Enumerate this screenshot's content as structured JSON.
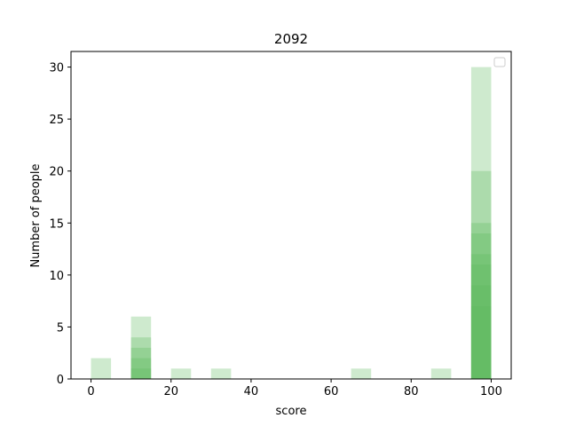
{
  "chart_data": {
    "type": "bar",
    "title": "2092",
    "xlabel": "score",
    "ylabel": "Number of people",
    "xlim": [
      -5,
      105
    ],
    "ylim": [
      0,
      31.5
    ],
    "xticks": [
      0,
      20,
      40,
      60,
      80,
      100
    ],
    "yticks": [
      0,
      5,
      10,
      15,
      20,
      25,
      30
    ],
    "bin_width": 5,
    "bar_color": "#5cb85c",
    "bar_alpha": 0.3,
    "legend": {
      "placement": "top-right",
      "entries": []
    },
    "grid": false,
    "series": [
      {
        "bins": [
          [
            0,
            2
          ],
          [
            10,
            6
          ],
          [
            65,
            1
          ],
          [
            85,
            1
          ],
          [
            95,
            30
          ]
        ]
      },
      {
        "bins": [
          [
            10,
            4
          ],
          [
            95,
            20
          ]
        ]
      },
      {
        "bins": [
          [
            10,
            3
          ],
          [
            95,
            15
          ]
        ]
      },
      {
        "bins": [
          [
            10,
            2
          ],
          [
            95,
            14
          ]
        ]
      },
      {
        "bins": [
          [
            20,
            1
          ],
          [
            30,
            1
          ],
          [
            95,
            12
          ]
        ]
      },
      {
        "bins": [
          [
            10,
            1
          ],
          [
            95,
            11
          ]
        ]
      },
      {
        "bins": [
          [
            95,
            9
          ]
        ]
      },
      {
        "bins": [
          [
            95,
            7
          ]
        ]
      }
    ]
  }
}
